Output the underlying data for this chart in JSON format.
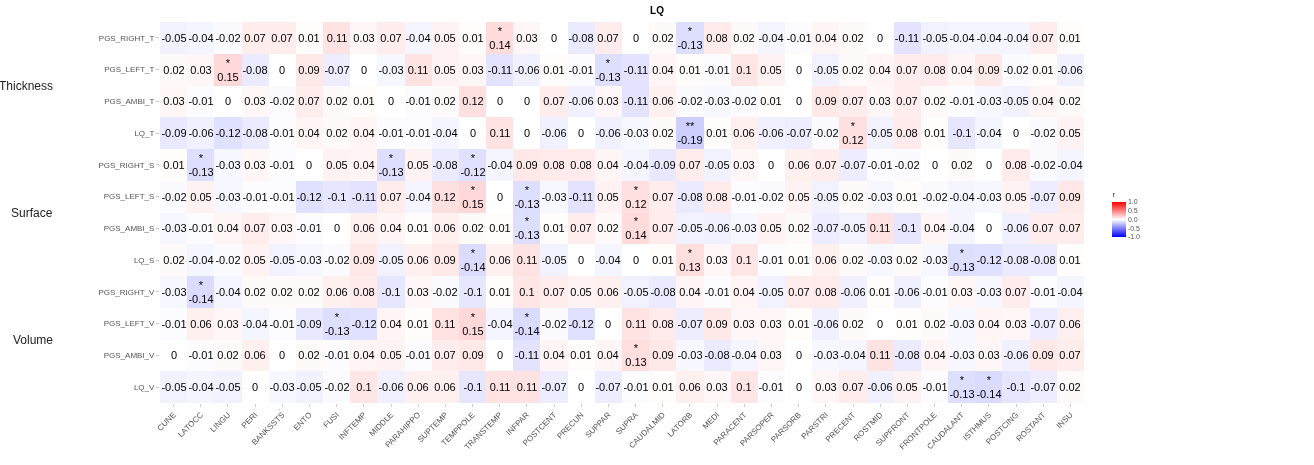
{
  "chart_data": {
    "type": "heatmap",
    "title": "LQ",
    "clabel": "r",
    "annotations": [
      "Thickness",
      "Surface",
      "Volume"
    ],
    "categories": [
      "CUNE",
      "LATOCC",
      "LINGU",
      "PERI",
      "BANKSSTS",
      "ENTO",
      "FUSI",
      "INFTEMP",
      "MIDDLE",
      "PARAHIPPO",
      "SUPTEMP",
      "TEMPPOLE",
      "TRANSTEMP",
      "INFPAR",
      "POSTCENT",
      "PRECUN",
      "SUPPAR",
      "SUPRA",
      "CAUDALMID",
      "LATORB",
      "MEDI",
      "PARACENT",
      "PARSOPER",
      "PARSORB",
      "PARSTRI",
      "PRECENT",
      "ROSTMID",
      "SUPFRONT",
      "FRONTPOLE",
      "CAUDALANT",
      "ISTHMUS",
      "POSTCING",
      "ROSTANT",
      "INSU"
    ],
    "y_categories": [
      "PGS_RIGHT_T",
      "PGS_LEFT_T",
      "PGS_AMBI_T",
      "LQ_T",
      "PGS_RIGHT_S",
      "PGS_LEFT_S",
      "PGS_AMBI_S",
      "LQ_S",
      "PGS_RIGHT_V",
      "PGS_LEFT_V",
      "PGS_AMBI_V",
      "LQ_V"
    ],
    "cells": [
      [
        -0.05,
        -0.04,
        -0.02,
        0.07,
        0.07,
        0.01,
        0.11,
        0.03,
        0.07,
        -0.04,
        0.05,
        0.01,
        0.14,
        0.03,
        0,
        -0.08,
        0.07,
        0,
        0.02,
        -0.13,
        0.08,
        0.02,
        -0.04,
        -0.01,
        0.04,
        0.02,
        0,
        -0.11,
        -0.05,
        -0.04,
        -0.04,
        -0.04,
        0.07,
        0.01
      ],
      [
        0.02,
        0.03,
        0.15,
        -0.08,
        0,
        0.09,
        -0.07,
        0,
        -0.03,
        0.11,
        0.05,
        0.03,
        -0.11,
        -0.06,
        0.01,
        -0.01,
        -0.13,
        -0.11,
        0.04,
        0.01,
        -0.01,
        0.1,
        0.05,
        0,
        -0.05,
        0.02,
        0.04,
        0.07,
        0.08,
        0.04,
        0.09,
        -0.02,
        0.01,
        -0.06
      ],
      [
        0.03,
        -0.01,
        0,
        0.03,
        -0.02,
        0.07,
        0.02,
        0.01,
        0,
        -0.01,
        0.02,
        0.12,
        0,
        0,
        0.07,
        -0.06,
        0.03,
        -0.11,
        0.06,
        -0.02,
        -0.03,
        -0.02,
        0.01,
        0,
        0.09,
        0.07,
        0.03,
        0.07,
        0.02,
        -0.01,
        -0.03,
        -0.05,
        0.04,
        0.02
      ],
      [
        -0.09,
        -0.06,
        -0.12,
        -0.08,
        -0.01,
        0.04,
        0.02,
        0.04,
        -0.01,
        -0.01,
        -0.04,
        0,
        0.11,
        0,
        -0.06,
        0,
        -0.06,
        -0.03,
        0.02,
        -0.19,
        0.01,
        0.06,
        -0.06,
        -0.07,
        -0.02,
        0.12,
        -0.05,
        0.08,
        0.01,
        -0.1,
        -0.04,
        0,
        -0.02,
        0.05
      ],
      [
        0.01,
        -0.13,
        -0.03,
        0.03,
        -0.01,
        0,
        0.05,
        0.04,
        -0.13,
        0.05,
        -0.08,
        -0.12,
        -0.04,
        0.09,
        0.08,
        0.08,
        0.04,
        -0.04,
        -0.09,
        0.07,
        -0.05,
        0.03,
        0,
        0.06,
        0.07,
        -0.07,
        -0.01,
        -0.02,
        0,
        0.02,
        0,
        0.08,
        -0.02,
        -0.04
      ],
      [
        -0.02,
        0.05,
        -0.03,
        -0.01,
        -0.01,
        -0.12,
        -0.1,
        -0.11,
        0.07,
        -0.04,
        0.12,
        0.15,
        0,
        -0.13,
        -0.03,
        -0.11,
        0.05,
        0.12,
        0.07,
        -0.08,
        0.08,
        -0.01,
        -0.02,
        0.05,
        -0.05,
        0.02,
        -0.03,
        0.01,
        -0.02,
        -0.04,
        -0.03,
        0.05,
        -0.07,
        0.09
      ],
      [
        -0.03,
        -0.01,
        0.04,
        0.07,
        0.03,
        -0.01,
        0,
        0.06,
        0.04,
        0.01,
        0.06,
        0.02,
        0.01,
        -0.13,
        0.01,
        0.07,
        0.02,
        0.14,
        0.07,
        -0.05,
        -0.06,
        -0.03,
        0.05,
        0.02,
        -0.07,
        -0.05,
        0.11,
        -0.1,
        0.04,
        -0.04,
        0,
        -0.06,
        0.07,
        0.07
      ],
      [
        0.02,
        -0.04,
        -0.02,
        0.05,
        -0.05,
        -0.03,
        -0.02,
        0.09,
        -0.05,
        0.06,
        0.09,
        -0.14,
        0.06,
        0.11,
        -0.05,
        0,
        -0.04,
        0,
        0.01,
        0.13,
        0.03,
        0.1,
        -0.01,
        0.01,
        0.06,
        0.02,
        -0.03,
        0.02,
        -0.03,
        -0.13,
        -0.12,
        -0.08,
        -0.08,
        0.01
      ],
      [
        -0.03,
        -0.14,
        -0.04,
        0.02,
        0.02,
        0.02,
        0.06,
        0.08,
        -0.1,
        0.03,
        -0.02,
        -0.1,
        0.01,
        0.1,
        0.07,
        0.05,
        0.06,
        -0.05,
        -0.08,
        0.04,
        -0.01,
        0.04,
        -0.05,
        0.07,
        0.08,
        -0.06,
        0.01,
        -0.06,
        -0.01,
        0.03,
        -0.03,
        0.07,
        -0.01,
        -0.04
      ],
      [
        -0.01,
        0.06,
        0.03,
        -0.04,
        -0.01,
        -0.09,
        -0.13,
        -0.12,
        0.04,
        0.01,
        0.11,
        0.15,
        -0.04,
        -0.14,
        -0.02,
        -0.12,
        0,
        0.11,
        0.08,
        -0.07,
        0.09,
        0.03,
        0.03,
        0.01,
        -0.06,
        0.02,
        0,
        0.01,
        0.02,
        -0.03,
        0.04,
        0.03,
        -0.07,
        0.06
      ],
      [
        0,
        -0.01,
        0.02,
        0.06,
        0,
        0.02,
        -0.01,
        0.04,
        0.05,
        -0.01,
        0.07,
        0.09,
        0,
        -0.11,
        0.04,
        0.01,
        0.04,
        0.13,
        0.09,
        -0.03,
        -0.08,
        -0.04,
        0.03,
        0,
        -0.03,
        -0.04,
        0.11,
        -0.08,
        0.04,
        -0.03,
        0.03,
        -0.06,
        0.09,
        0.07
      ],
      [
        -0.05,
        -0.04,
        -0.05,
        0,
        -0.03,
        -0.05,
        -0.02,
        0.1,
        -0.06,
        0.06,
        0.06,
        -0.1,
        0.11,
        0.11,
        -0.07,
        0,
        -0.07,
        -0.01,
        0.01,
        0.06,
        0.03,
        0.1,
        -0.01,
        0,
        0.03,
        0.07,
        -0.06,
        0.05,
        -0.01,
        -0.13,
        -0.14,
        -0.1,
        -0.07,
        0.02
      ]
    ],
    "cell_labels": [
      [
        "-0.05",
        "-0.04",
        "-0.02",
        "0.07",
        "0.07",
        "0.01",
        "0.11",
        "0.03",
        "0.07",
        "-0.04",
        "0.05",
        "0.01",
        "*\n0.14",
        "0.03",
        "0",
        "-0.08",
        "0.07",
        "0",
        "0.02",
        "*\n-0.13",
        "0.08",
        "0.02",
        "-0.04",
        "-0.01",
        "0.04",
        "0.02",
        "0",
        "-0.11",
        "-0.05",
        "-0.04",
        "-0.04",
        "-0.04",
        "0.07",
        "0.01"
      ],
      [
        "0.02",
        "0.03",
        "*\n0.15",
        "-0.08",
        "0",
        "0.09",
        "-0.07",
        "0",
        "-0.03",
        "0.11",
        "0.05",
        "0.03",
        "-0.11",
        "-0.06",
        "0.01",
        "-0.01",
        "*\n-0.13",
        "-0.11",
        "0.04",
        "0.01",
        "-0.01",
        "0.1",
        "0.05",
        "0",
        "-0.05",
        "0.02",
        "0.04",
        "0.07",
        "0.08",
        "0.04",
        "0.09",
        "-0.02",
        "0.01",
        "-0.06"
      ],
      [
        "0.03",
        "-0.01",
        "0",
        "0.03",
        "-0.02",
        "0.07",
        "0.02",
        "0.01",
        "0",
        "-0.01",
        "0.02",
        "0.12",
        "0",
        "0",
        "0.07",
        "-0.06",
        "0.03",
        "-0.11",
        "0.06",
        "-0.02",
        "-0.03",
        "-0.02",
        "0.01",
        "0",
        "0.09",
        "0.07",
        "0.03",
        "0.07",
        "0.02",
        "-0.01",
        "-0.03",
        "-0.05",
        "0.04",
        "0.02"
      ],
      [
        "-0.09",
        "-0.06",
        "-0.12",
        "-0.08",
        "-0.01",
        "0.04",
        "0.02",
        "0.04",
        "-0.01",
        "-0.01",
        "-0.04",
        "0",
        "0.11",
        "0",
        "-0.06",
        "0",
        "-0.06",
        "-0.03",
        "0.02",
        "**\n-0.19",
        "0.01",
        "0.06",
        "-0.06",
        "-0.07",
        "-0.02",
        "*\n0.12",
        "-0.05",
        "0.08",
        "0.01",
        "-0.1",
        "-0.04",
        "0",
        "-0.02",
        "0.05"
      ],
      [
        "0.01",
        "*\n-0.13",
        "-0.03",
        "0.03",
        "-0.01",
        "0",
        "0.05",
        "0.04",
        "*\n-0.13",
        "0.05",
        "-0.08",
        "*\n-0.12",
        "-0.04",
        "0.09",
        "0.08",
        "0.08",
        "0.04",
        "-0.04",
        "-0.09",
        "0.07",
        "-0.05",
        "0.03",
        "0",
        "0.06",
        "0.07",
        "-0.07",
        "-0.01",
        "-0.02",
        "0",
        "0.02",
        "0",
        "0.08",
        "-0.02",
        "-0.04"
      ],
      [
        "-0.02",
        "0.05",
        "-0.03",
        "-0.01",
        "-0.01",
        "-0.12",
        "-0.1",
        "-0.11",
        "0.07",
        "-0.04",
        "0.12",
        "*\n0.15",
        "0",
        "*\n-0.13",
        "-0.03",
        "-0.11",
        "0.05",
        "*\n0.12",
        "0.07",
        "-0.08",
        "0.08",
        "-0.01",
        "-0.02",
        "0.05",
        "-0.05",
        "0.02",
        "-0.03",
        "0.01",
        "-0.02",
        "-0.04",
        "-0.03",
        "0.05",
        "-0.07",
        "0.09"
      ],
      [
        "-0.03",
        "-0.01",
        "0.04",
        "0.07",
        "0.03",
        "-0.01",
        "0",
        "0.06",
        "0.04",
        "0.01",
        "0.06",
        "0.02",
        "0.01",
        "*\n-0.13",
        "0.01",
        "0.07",
        "0.02",
        "*\n0.14",
        "0.07",
        "-0.05",
        "-0.06",
        "-0.03",
        "0.05",
        "0.02",
        "-0.07",
        "-0.05",
        "0.11",
        "-0.1",
        "0.04",
        "-0.04",
        "0",
        "-0.06",
        "0.07",
        "0.07"
      ],
      [
        "0.02",
        "-0.04",
        "-0.02",
        "0.05",
        "-0.05",
        "-0.03",
        "-0.02",
        "0.09",
        "-0.05",
        "0.06",
        "0.09",
        "*\n-0.14",
        "0.06",
        "0.11",
        "-0.05",
        "0",
        "-0.04",
        "0",
        "0.01",
        "*\n0.13",
        "0.03",
        "0.1",
        "-0.01",
        "0.01",
        "0.06",
        "0.02",
        "-0.03",
        "0.02",
        "-0.03",
        "*\n-0.13",
        "-0.12",
        "-0.08",
        "-0.08",
        "0.01"
      ],
      [
        "-0.03",
        "*\n-0.14",
        "-0.04",
        "0.02",
        "0.02",
        "0.02",
        "0.06",
        "0.08",
        "-0.1",
        "0.03",
        "-0.02",
        "-0.1",
        "0.01",
        "0.1",
        "0.07",
        "0.05",
        "0.06",
        "-0.05",
        "-0.08",
        "0.04",
        "-0.01",
        "0.04",
        "-0.05",
        "0.07",
        "0.08",
        "-0.06",
        "0.01",
        "-0.06",
        "-0.01",
        "0.03",
        "-0.03",
        "0.07",
        "-0.01",
        "-0.04"
      ],
      [
        "-0.01",
        "0.06",
        "0.03",
        "-0.04",
        "-0.01",
        "-0.09",
        "*\n-0.13",
        "-0.12",
        "0.04",
        "0.01",
        "0.11",
        "*\n0.15",
        "-0.04",
        "*\n-0.14",
        "-0.02",
        "-0.12",
        "0",
        "0.11",
        "0.08",
        "-0.07",
        "0.09",
        "0.03",
        "0.03",
        "0.01",
        "-0.06",
        "0.02",
        "0",
        "0.01",
        "0.02",
        "-0.03",
        "0.04",
        "0.03",
        "-0.07",
        "0.06"
      ],
      [
        "0",
        "-0.01",
        "0.02",
        "0.06",
        "0",
        "0.02",
        "-0.01",
        "0.04",
        "0.05",
        "-0.01",
        "0.07",
        "0.09",
        "0",
        "-0.11",
        "0.04",
        "0.01",
        "0.04",
        "*\n0.13",
        "0.09",
        "-0.03",
        "-0.08",
        "-0.04",
        "0.03",
        "0",
        "-0.03",
        "-0.04",
        "0.11",
        "-0.08",
        "0.04",
        "-0.03",
        "0.03",
        "-0.06",
        "0.09",
        "0.07"
      ],
      [
        "-0.05",
        "-0.04",
        "-0.05",
        "0",
        "-0.03",
        "-0.05",
        "-0.02",
        "0.1",
        "-0.06",
        "0.06",
        "0.06",
        "-0.1",
        "0.11",
        "0.11",
        "-0.07",
        "0",
        "-0.07",
        "-0.01",
        "0.01",
        "0.06",
        "0.03",
        "0.1",
        "-0.01",
        "0",
        "0.03",
        "0.07",
        "-0.06",
        "0.05",
        "-0.01",
        "*\n-0.13",
        "*\n-0.14",
        "-0.1",
        "-0.07",
        "0.02"
      ]
    ],
    "clim": [
      -1,
      1
    ],
    "cticks": [
      {
        "value": -1,
        "label": "-1.0"
      },
      {
        "value": -0.5,
        "label": "-0.5"
      },
      {
        "value": 0,
        "label": "0.0"
      },
      {
        "value": 0.5,
        "label": "0.5"
      },
      {
        "value": 1,
        "label": "1.0"
      }
    ]
  }
}
